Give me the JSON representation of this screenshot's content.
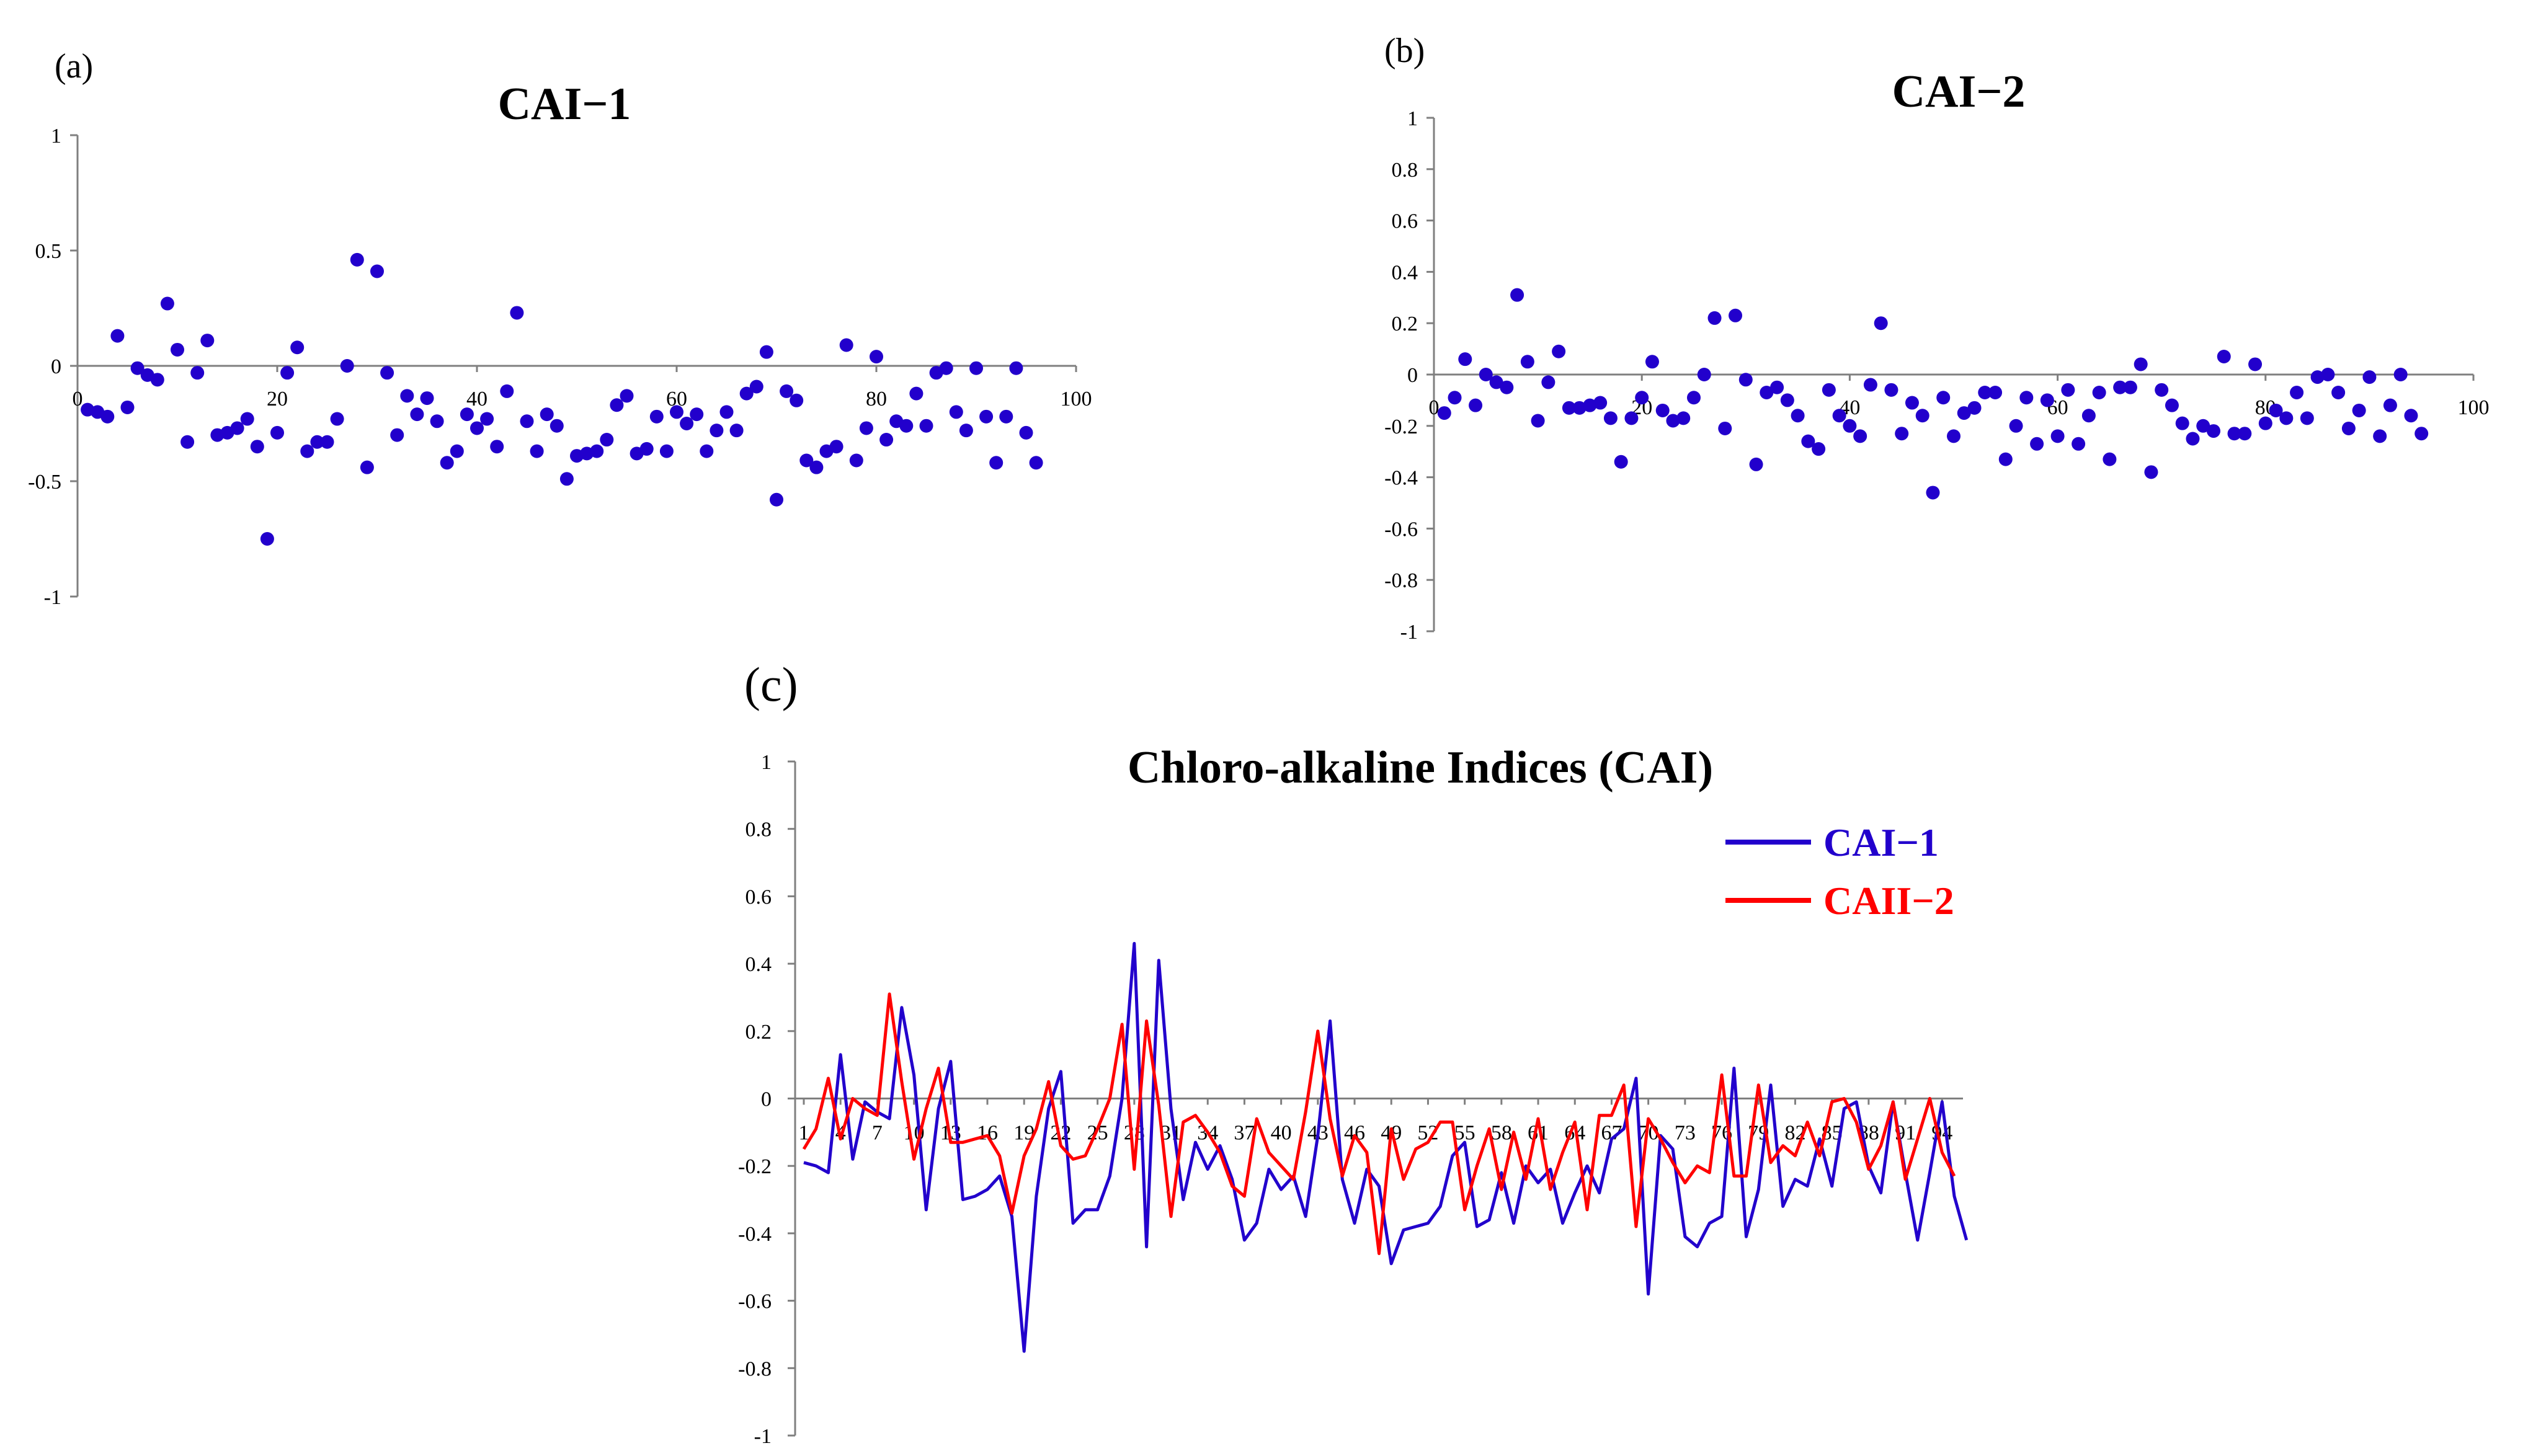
{
  "colors": {
    "cai1": "#2200cc",
    "cai2": "#ff0000",
    "axis": "#7f7f7f"
  },
  "chart_data": [
    {
      "panel_label": "(a)",
      "type": "scatter",
      "title": "CAI−1",
      "xlim": [
        0,
        100
      ],
      "ylim": [
        -1,
        1
      ],
      "xticks": [
        "0",
        "20",
        "40",
        "60",
        "80",
        "100"
      ],
      "yticks": [
        "1",
        "0.5",
        "0",
        "-0.5",
        "-1"
      ],
      "grid": false,
      "series": [
        {
          "values": [
            -0.19,
            -0.2,
            -0.22,
            0.13,
            -0.18,
            -0.01,
            -0.04,
            -0.06,
            0.27,
            0.07,
            -0.33,
            -0.03,
            0.11,
            -0.3,
            -0.29,
            -0.27,
            -0.23,
            -0.35,
            -0.75,
            -0.29,
            -0.03,
            0.08,
            -0.37,
            -0.33,
            -0.33,
            -0.23,
            0.0,
            0.46,
            -0.44,
            0.41,
            -0.03,
            -0.3,
            -0.13,
            -0.21,
            -0.14,
            -0.24,
            -0.42,
            -0.37,
            -0.21,
            -0.27,
            -0.23,
            -0.35,
            -0.11,
            0.23,
            -0.24,
            -0.37,
            -0.21,
            -0.26,
            -0.49,
            -0.39,
            -0.38,
            -0.37,
            -0.32,
            -0.17,
            -0.13,
            -0.38,
            -0.36,
            -0.22,
            -0.37,
            -0.2,
            -0.25,
            -0.21,
            -0.37,
            -0.28,
            -0.2,
            -0.28,
            -0.12,
            -0.09,
            0.06,
            -0.58,
            -0.11,
            -0.15,
            -0.41,
            -0.44,
            -0.37,
            -0.35,
            0.09,
            -0.41,
            -0.27,
            0.04,
            -0.32,
            -0.24,
            -0.26,
            -0.12,
            -0.26,
            -0.03,
            -0.01,
            -0.2,
            -0.28,
            -0.01,
            -0.22,
            -0.42,
            -0.22,
            -0.01,
            -0.29,
            -0.42
          ]
        }
      ]
    },
    {
      "panel_label": "(b)",
      "type": "scatter",
      "title": "CAI−2",
      "xlim": [
        0,
        100
      ],
      "ylim": [
        -1,
        1
      ],
      "xticks": [
        "0",
        "20",
        "40",
        "60",
        "80",
        "100"
      ],
      "yticks": [
        "1",
        "0.8",
        "0.6",
        "0.4",
        "0.2",
        "0",
        "-0.2",
        "-0.4",
        "-0.6",
        "-0.8",
        "-1"
      ],
      "grid": false,
      "series": [
        {
          "values": [
            -0.15,
            -0.09,
            0.06,
            -0.12,
            0.0,
            -0.03,
            -0.05,
            0.31,
            0.05,
            -0.18,
            -0.03,
            0.09,
            -0.13,
            -0.13,
            -0.12,
            -0.11,
            -0.17,
            -0.34,
            -0.17,
            -0.09,
            0.05,
            -0.14,
            -0.18,
            -0.17,
            -0.09,
            0.0,
            0.22,
            -0.21,
            0.23,
            -0.02,
            -0.35,
            -0.07,
            -0.05,
            -0.1,
            -0.16,
            -0.26,
            -0.29,
            -0.06,
            -0.16,
            -0.2,
            -0.24,
            -0.04,
            0.2,
            -0.06,
            -0.23,
            -0.11,
            -0.16,
            -0.46,
            -0.09,
            -0.24,
            -0.15,
            -0.13,
            -0.07,
            -0.07,
            -0.33,
            -0.2,
            -0.09,
            -0.27,
            -0.1,
            -0.24,
            -0.06,
            -0.27,
            -0.16,
            -0.07,
            -0.33,
            -0.05,
            -0.05,
            0.04,
            -0.38,
            -0.06,
            -0.12,
            -0.19,
            -0.25,
            -0.2,
            -0.22,
            0.07,
            -0.23,
            -0.23,
            0.04,
            -0.19,
            -0.14,
            -0.17,
            -0.07,
            -0.17,
            -0.01,
            0.0,
            -0.07,
            -0.21,
            -0.14,
            -0.01,
            -0.24,
            -0.12,
            0.0,
            -0.16,
            -0.23
          ]
        }
      ]
    },
    {
      "panel_label": "(c)",
      "type": "line",
      "title": "Chloro-alkaline Indices (CAI)",
      "xlim": [
        1,
        95
      ],
      "ylim": [
        -1,
        1
      ],
      "xticks": [
        "1",
        "4",
        "7",
        "10",
        "13",
        "16",
        "19",
        "22",
        "25",
        "28",
        "31",
        "34",
        "37",
        "40",
        "43",
        "46",
        "49",
        "52",
        "55",
        "58",
        "61",
        "64",
        "67",
        "70",
        "73",
        "76",
        "79",
        "82",
        "85",
        "88",
        "91",
        "94"
      ],
      "yticks": [
        "1",
        "0.8",
        "0.6",
        "0.4",
        "0.2",
        "0",
        "-0.2",
        "-0.4",
        "-0.6",
        "-0.8",
        "-1"
      ],
      "grid": false,
      "legend": "top-right",
      "series": [
        {
          "name": "CAI−1",
          "color": "#2200cc"
        },
        {
          "name": "CAII−2",
          "color": "#ff0000"
        }
      ]
    }
  ]
}
